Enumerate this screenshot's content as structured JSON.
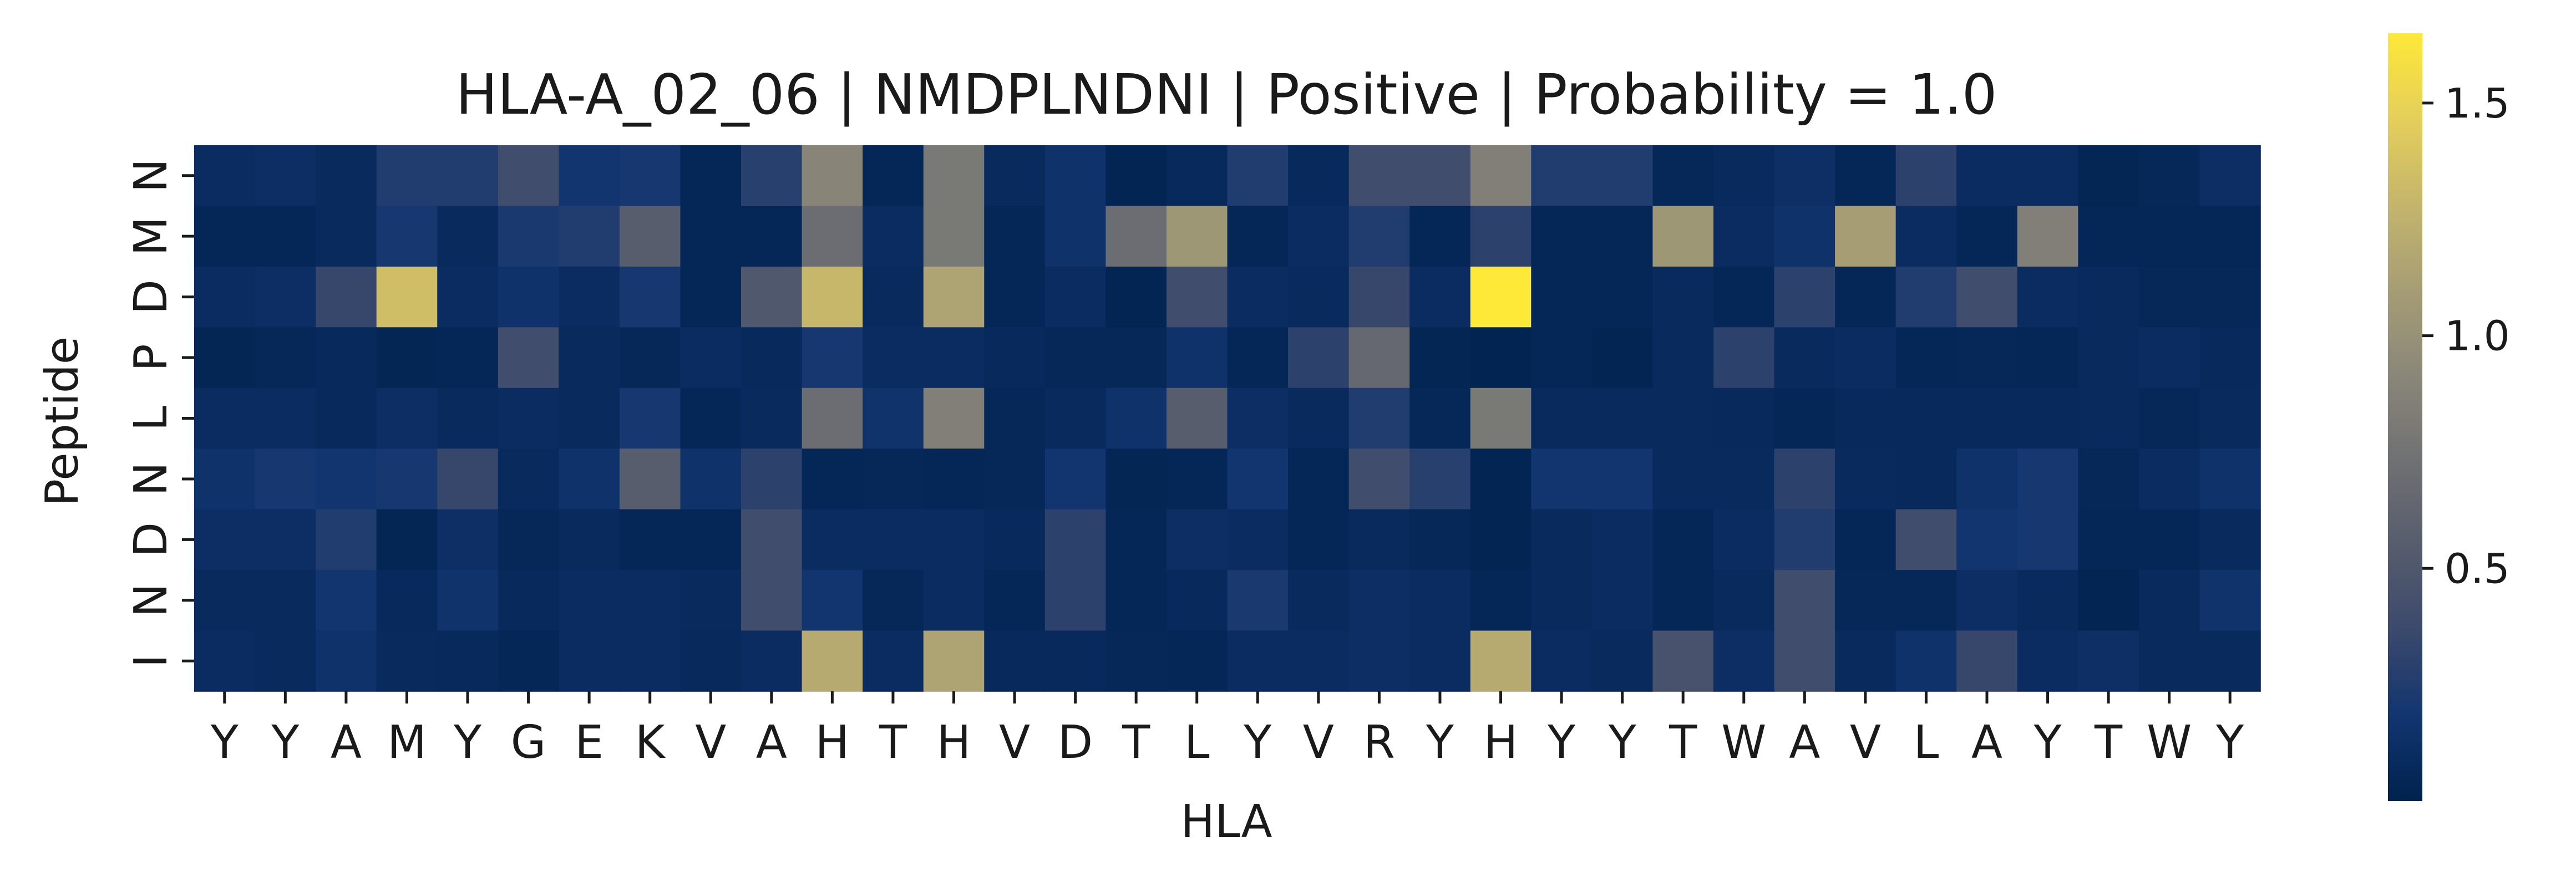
{
  "chart_data": {
    "type": "heatmap",
    "title": "HLA-A_02_06 | NMDPLNDNI | Positive | Probability = 1.0",
    "xlabel": "HLA",
    "ylabel": "Peptide",
    "x_categories": [
      "Y",
      "Y",
      "A",
      "M",
      "Y",
      "G",
      "E",
      "K",
      "V",
      "A",
      "H",
      "T",
      "H",
      "V",
      "D",
      "T",
      "L",
      "Y",
      "V",
      "R",
      "Y",
      "H",
      "Y",
      "Y",
      "T",
      "W",
      "A",
      "V",
      "L",
      "A",
      "Y",
      "T",
      "W",
      "Y"
    ],
    "y_categories": [
      "N",
      "M",
      "D",
      "P",
      "L",
      "N",
      "D",
      "N",
      "I"
    ],
    "values": [
      [
        0.1,
        0.12,
        0.08,
        0.25,
        0.25,
        0.4,
        0.18,
        0.2,
        0.05,
        0.28,
        0.9,
        0.05,
        0.8,
        0.08,
        0.15,
        0.03,
        0.07,
        0.25,
        0.07,
        0.4,
        0.4,
        0.85,
        0.25,
        0.25,
        0.06,
        0.08,
        0.13,
        0.05,
        0.3,
        0.1,
        0.1,
        0.04,
        0.06,
        0.12
      ],
      [
        0.05,
        0.05,
        0.08,
        0.2,
        0.08,
        0.22,
        0.25,
        0.55,
        0.05,
        0.05,
        0.7,
        0.1,
        0.8,
        0.05,
        0.15,
        0.7,
        1.05,
        0.05,
        0.1,
        0.25,
        0.05,
        0.3,
        0.05,
        0.05,
        1.05,
        0.1,
        0.15,
        1.1,
        0.1,
        0.05,
        0.85,
        0.05,
        0.05,
        0.05
      ],
      [
        0.1,
        0.12,
        0.35,
        1.35,
        0.1,
        0.15,
        0.1,
        0.2,
        0.05,
        0.5,
        1.3,
        0.08,
        1.15,
        0.05,
        0.1,
        0.03,
        0.4,
        0.1,
        0.08,
        0.35,
        0.1,
        1.65,
        0.05,
        0.05,
        0.08,
        0.05,
        0.3,
        0.05,
        0.25,
        0.4,
        0.1,
        0.08,
        0.06,
        0.06
      ],
      [
        0.04,
        0.06,
        0.07,
        0.04,
        0.05,
        0.4,
        0.08,
        0.06,
        0.1,
        0.07,
        0.2,
        0.1,
        0.1,
        0.07,
        0.06,
        0.06,
        0.15,
        0.05,
        0.3,
        0.65,
        0.04,
        0.02,
        0.05,
        0.03,
        0.08,
        0.3,
        0.08,
        0.1,
        0.05,
        0.06,
        0.05,
        0.08,
        0.1,
        0.07
      ],
      [
        0.1,
        0.1,
        0.07,
        0.12,
        0.08,
        0.1,
        0.08,
        0.2,
        0.05,
        0.08,
        0.7,
        0.16,
        0.85,
        0.06,
        0.08,
        0.15,
        0.55,
        0.12,
        0.08,
        0.25,
        0.06,
        0.8,
        0.08,
        0.08,
        0.08,
        0.07,
        0.05,
        0.07,
        0.07,
        0.07,
        0.07,
        0.08,
        0.06,
        0.08
      ],
      [
        0.15,
        0.2,
        0.18,
        0.2,
        0.35,
        0.08,
        0.15,
        0.55,
        0.15,
        0.3,
        0.05,
        0.06,
        0.05,
        0.06,
        0.18,
        0.04,
        0.05,
        0.18,
        0.05,
        0.4,
        0.28,
        0.03,
        0.18,
        0.18,
        0.08,
        0.08,
        0.3,
        0.08,
        0.07,
        0.15,
        0.2,
        0.06,
        0.1,
        0.15
      ],
      [
        0.12,
        0.12,
        0.25,
        0.04,
        0.13,
        0.06,
        0.08,
        0.05,
        0.05,
        0.4,
        0.1,
        0.1,
        0.1,
        0.07,
        0.3,
        0.05,
        0.12,
        0.1,
        0.05,
        0.08,
        0.06,
        0.03,
        0.08,
        0.1,
        0.05,
        0.1,
        0.25,
        0.05,
        0.4,
        0.18,
        0.2,
        0.05,
        0.05,
        0.08
      ],
      [
        0.08,
        0.08,
        0.18,
        0.07,
        0.16,
        0.07,
        0.1,
        0.1,
        0.08,
        0.4,
        0.18,
        0.06,
        0.1,
        0.05,
        0.3,
        0.05,
        0.07,
        0.22,
        0.08,
        0.12,
        0.1,
        0.05,
        0.08,
        0.1,
        0.05,
        0.08,
        0.4,
        0.06,
        0.06,
        0.12,
        0.08,
        0.03,
        0.08,
        0.16
      ],
      [
        0.1,
        0.08,
        0.15,
        0.08,
        0.07,
        0.05,
        0.1,
        0.1,
        0.07,
        0.1,
        1.2,
        0.1,
        1.15,
        0.07,
        0.07,
        0.06,
        0.05,
        0.1,
        0.1,
        0.12,
        0.1,
        1.2,
        0.1,
        0.08,
        0.45,
        0.12,
        0.4,
        0.08,
        0.15,
        0.35,
        0.1,
        0.13,
        0.08,
        0.08
      ]
    ],
    "vmin": 0,
    "vmax": 1.65,
    "colormap": "cividis",
    "colorbar_ticks": [
      0.5,
      1.0,
      1.5
    ],
    "colorbar_tick_labels": [
      "0.5",
      "1.0",
      "1.5"
    ],
    "grid": false
  },
  "colors": {
    "cividis_stops": [
      "#00224e",
      "#123570",
      "#3b496c",
      "#575d6d",
      "#707173",
      "#8a8779",
      "#a69d75",
      "#c4b56c",
      "#e4cf5b",
      "#fee838"
    ]
  }
}
